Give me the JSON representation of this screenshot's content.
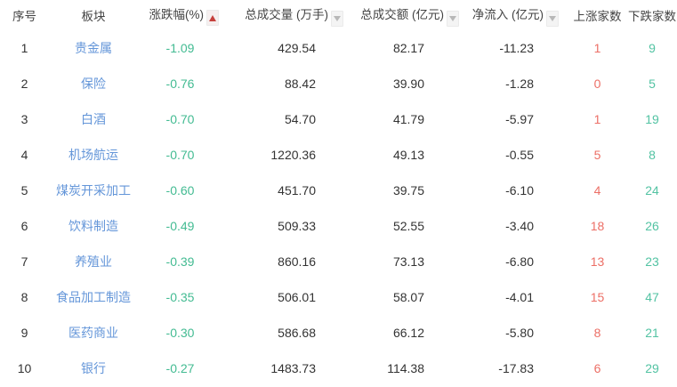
{
  "colors": {
    "link_blue": "#6496d9",
    "change_green": "#43bb92",
    "up_red": "#ec6f66",
    "down_green": "#53c3a3",
    "sort_active_red": "#c5403c",
    "sort_inactive_gray": "#b8b8b8",
    "header_text": "#444444",
    "number_text": "#333333"
  },
  "table": {
    "columns": [
      {
        "key": "index",
        "label": "序号",
        "sortable": false,
        "sort": "none"
      },
      {
        "key": "sector",
        "label": "板块",
        "sortable": false,
        "sort": "none"
      },
      {
        "key": "change_pct",
        "label": "涨跌幅(%)",
        "sortable": true,
        "sort": "asc"
      },
      {
        "key": "volume",
        "label": "总成交量 (万手)",
        "sortable": true,
        "sort": "none"
      },
      {
        "key": "turnover",
        "label": "总成交额 (亿元)",
        "sortable": true,
        "sort": "none"
      },
      {
        "key": "net_inflow",
        "label": "净流入 (亿元)",
        "sortable": true,
        "sort": "none"
      },
      {
        "key": "gainers",
        "label": "上涨家数",
        "sortable": false,
        "sort": "none"
      },
      {
        "key": "losers",
        "label": "下跌家数",
        "sortable": false,
        "sort": "none"
      }
    ],
    "rows": [
      {
        "index": "1",
        "sector": "贵金属",
        "change_pct": "-1.09",
        "volume": "429.54",
        "turnover": "82.17",
        "net_inflow": "-11.23",
        "gainers": "1",
        "losers": "9"
      },
      {
        "index": "2",
        "sector": "保险",
        "change_pct": "-0.76",
        "volume": "88.42",
        "turnover": "39.90",
        "net_inflow": "-1.28",
        "gainers": "0",
        "losers": "5"
      },
      {
        "index": "3",
        "sector": "白酒",
        "change_pct": "-0.70",
        "volume": "54.70",
        "turnover": "41.79",
        "net_inflow": "-5.97",
        "gainers": "1",
        "losers": "19"
      },
      {
        "index": "4",
        "sector": "机场航运",
        "change_pct": "-0.70",
        "volume": "1220.36",
        "turnover": "49.13",
        "net_inflow": "-0.55",
        "gainers": "5",
        "losers": "8"
      },
      {
        "index": "5",
        "sector": "煤炭开采加工",
        "change_pct": "-0.60",
        "volume": "451.70",
        "turnover": "39.75",
        "net_inflow": "-6.10",
        "gainers": "4",
        "losers": "24"
      },
      {
        "index": "6",
        "sector": "饮料制造",
        "change_pct": "-0.49",
        "volume": "509.33",
        "turnover": "52.55",
        "net_inflow": "-3.40",
        "gainers": "18",
        "losers": "26"
      },
      {
        "index": "7",
        "sector": "养殖业",
        "change_pct": "-0.39",
        "volume": "860.16",
        "turnover": "73.13",
        "net_inflow": "-6.80",
        "gainers": "13",
        "losers": "23"
      },
      {
        "index": "8",
        "sector": "食品加工制造",
        "change_pct": "-0.35",
        "volume": "506.01",
        "turnover": "58.07",
        "net_inflow": "-4.01",
        "gainers": "15",
        "losers": "47"
      },
      {
        "index": "9",
        "sector": "医药商业",
        "change_pct": "-0.30",
        "volume": "586.68",
        "turnover": "66.12",
        "net_inflow": "-5.80",
        "gainers": "8",
        "losers": "21"
      },
      {
        "index": "10",
        "sector": "银行",
        "change_pct": "-0.27",
        "volume": "1483.73",
        "turnover": "114.38",
        "net_inflow": "-17.83",
        "gainers": "6",
        "losers": "29"
      }
    ]
  }
}
